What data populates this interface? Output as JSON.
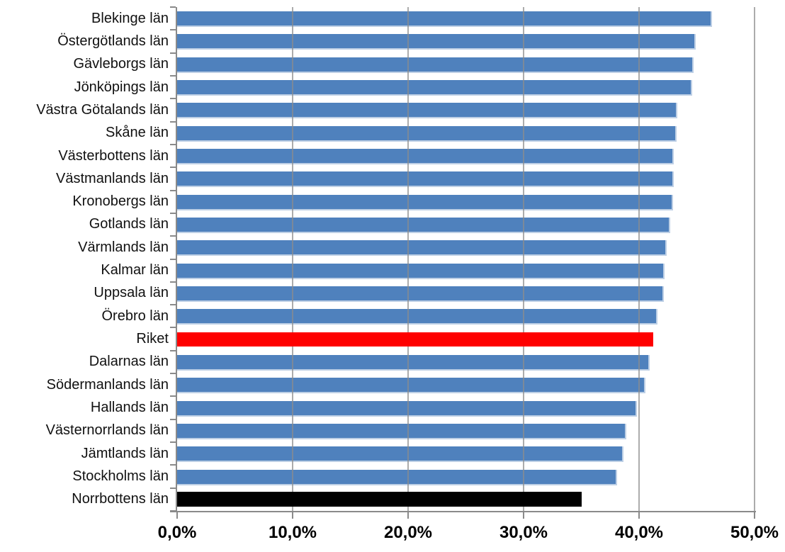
{
  "chart_data": {
    "type": "bar",
    "orientation": "horizontal",
    "title": "",
    "xlabel": "",
    "ylabel": "",
    "xlim": [
      0,
      50
    ],
    "grid": "vertical",
    "legend": "none",
    "x_tick_values": [
      0,
      10,
      20,
      30,
      40,
      50
    ],
    "x_tick_labels": [
      "0,0%",
      "10,0%",
      "20,0%",
      "30,0%",
      "40,0%",
      "50,0%"
    ],
    "categories": [
      "Blekinge län",
      "Östergötlands län",
      "Gävleborgs län",
      "Jönköpings län",
      "Västra Götalands län",
      "Skåne län",
      "Västerbottens län",
      "Västmanlands län",
      "Kronobergs län",
      "Gotlands län",
      "Värmlands län",
      "Kalmar län",
      "Uppsala län",
      "Örebro län",
      "Riket",
      "Dalarnas län",
      "Södermanlands län",
      "Hallands län",
      "Västernorrlands län",
      "Jämtlands län",
      "Stockholms län",
      "Norrbottens län"
    ],
    "values": [
      46.2,
      44.8,
      44.6,
      44.5,
      43.2,
      43.1,
      42.9,
      42.9,
      42.8,
      42.6,
      42.3,
      42.1,
      42.0,
      41.5,
      41.2,
      40.8,
      40.4,
      39.7,
      38.8,
      38.5,
      38.0,
      35.0
    ],
    "bar_colors": [
      "blue",
      "blue",
      "blue",
      "blue",
      "blue",
      "blue",
      "blue",
      "blue",
      "blue",
      "blue",
      "blue",
      "blue",
      "blue",
      "blue",
      "red",
      "blue",
      "blue",
      "blue",
      "blue",
      "blue",
      "blue",
      "black"
    ],
    "highlighted_series": {
      "Riket": "red",
      "Norrbottens län": "black"
    }
  },
  "colors": {
    "bar_blue": "#4F81BD",
    "bar_blue_border": "#BDCFE5",
    "bar_red": "#FE0000",
    "bar_black": "#000000",
    "axis_line": "#8A8A8A",
    "gridline": "#8C8C8C",
    "label_text": "#111111",
    "tick_label_text": "#000000",
    "background": "#FFFFFF"
  }
}
